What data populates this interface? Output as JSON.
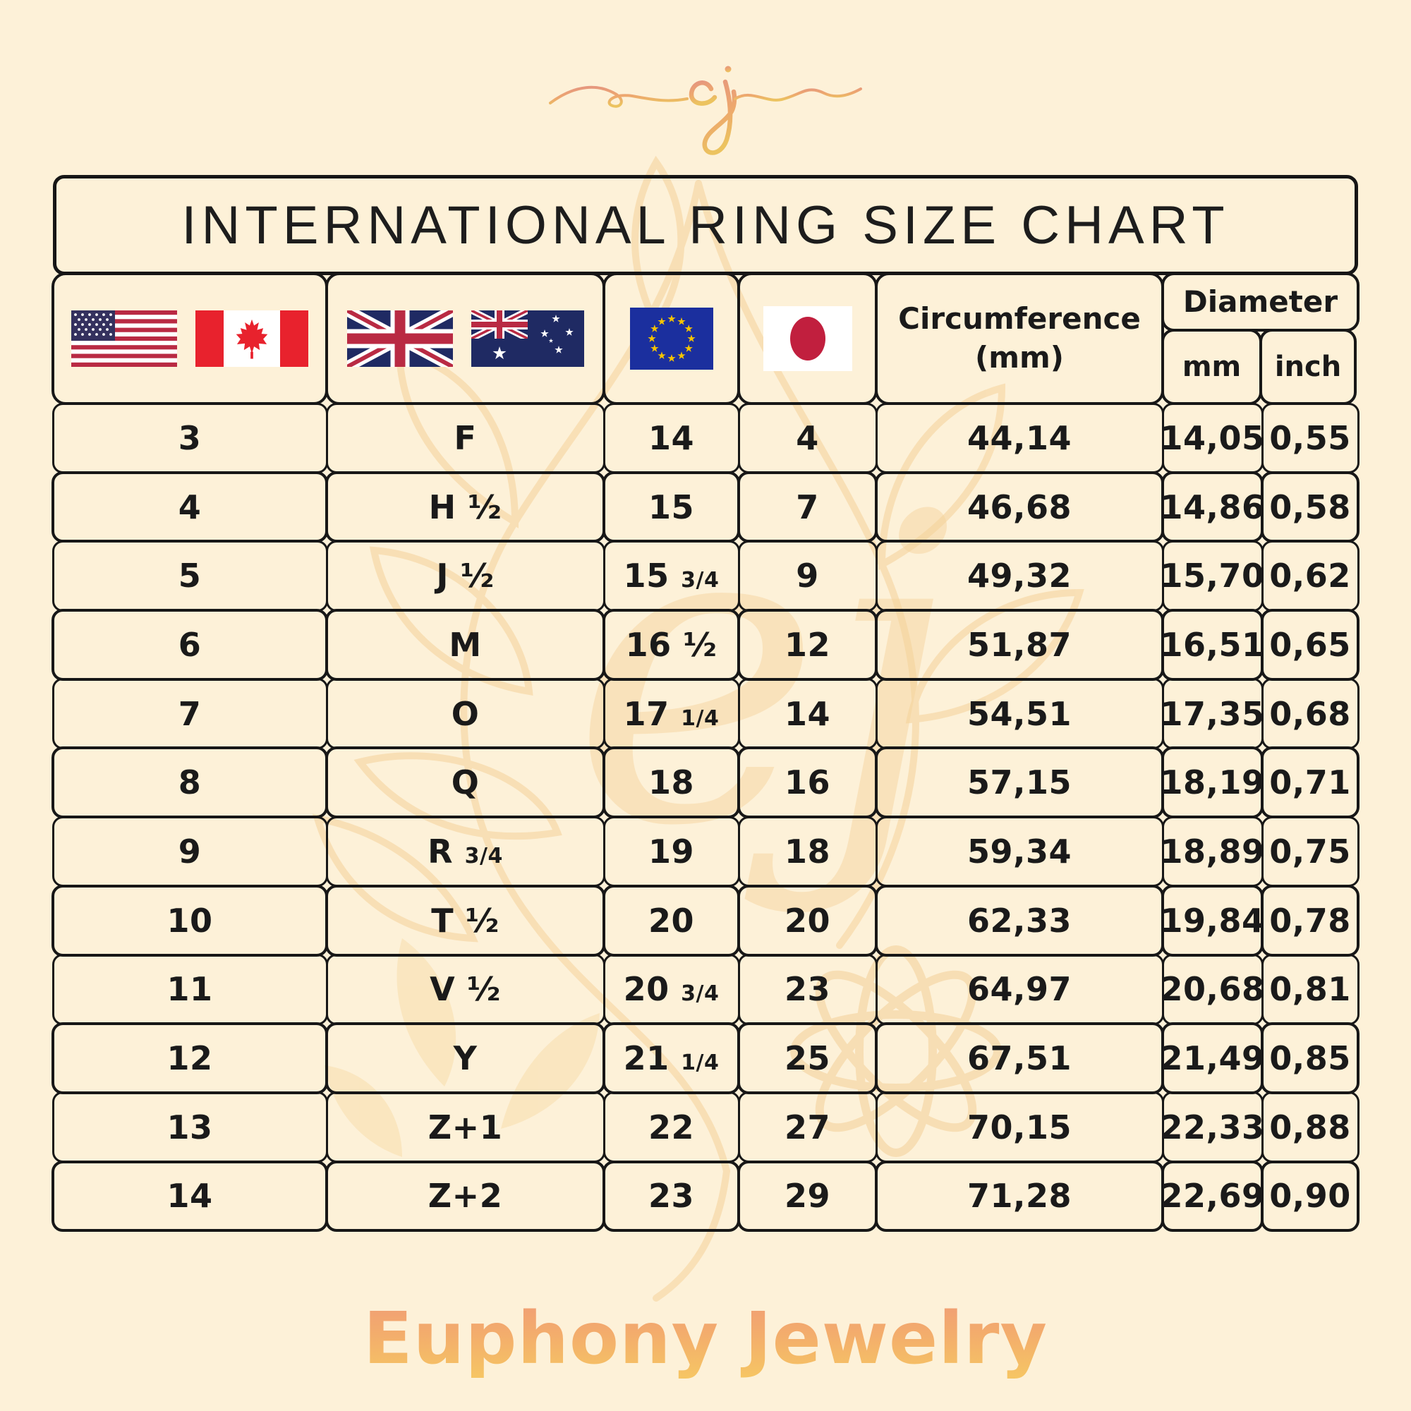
{
  "logo": {
    "monogram": "ej"
  },
  "title": "INTERNATIONAL RING SIZE CHART",
  "table": {
    "header": {
      "us_ca_flags": [
        "us-flag",
        "canada-flag"
      ],
      "uk_au_flags": [
        "uk-flag",
        "australia-flag"
      ],
      "eu_flags": [
        "eu-flag"
      ],
      "jp_flags": [
        "japan-flag"
      ],
      "circumference_line1": "Circumference",
      "circumference_line2": "(mm)",
      "diameter_label": "Diameter",
      "diameter_sub_mm": "mm",
      "diameter_sub_inch": "inch"
    },
    "rows": [
      {
        "us": "3",
        "uk": "F",
        "eu": "14",
        "jp": "4",
        "circumference_mm": "44,14",
        "diameter_mm": "14,05",
        "diameter_inch": "0,55"
      },
      {
        "us": "4",
        "uk": "H ½",
        "eu": "15",
        "jp": "7",
        "circumference_mm": "46,68",
        "diameter_mm": "14,86",
        "diameter_inch": "0,58"
      },
      {
        "us": "5",
        "uk": "J ½",
        "eu": "15 3/4",
        "jp": "9",
        "circumference_mm": "49,32",
        "diameter_mm": "15,70",
        "diameter_inch": "0,62"
      },
      {
        "us": "6",
        "uk": "M",
        "eu": "16 ½",
        "jp": "12",
        "circumference_mm": "51,87",
        "diameter_mm": "16,51",
        "diameter_inch": "0,65"
      },
      {
        "us": "7",
        "uk": "O",
        "eu": "17 1/4",
        "jp": "14",
        "circumference_mm": "54,51",
        "diameter_mm": "17,35",
        "diameter_inch": "0,68"
      },
      {
        "us": "8",
        "uk": "Q",
        "eu": "18",
        "jp": "16",
        "circumference_mm": "57,15",
        "diameter_mm": "18,19",
        "diameter_inch": "0,71"
      },
      {
        "us": "9",
        "uk": "R 3/4",
        "eu": "19",
        "jp": "18",
        "circumference_mm": "59,34",
        "diameter_mm": "18,89",
        "diameter_inch": "0,75"
      },
      {
        "us": "10",
        "uk": "T ½",
        "eu": "20",
        "jp": "20",
        "circumference_mm": "62,33",
        "diameter_mm": "19,84",
        "diameter_inch": "0,78"
      },
      {
        "us": "11",
        "uk": "V ½",
        "eu": "20 3/4",
        "jp": "23",
        "circumference_mm": "64,97",
        "diameter_mm": "20,68",
        "diameter_inch": "0,81"
      },
      {
        "us": "12",
        "uk": "Y",
        "eu": "21 1/4",
        "jp": "25",
        "circumference_mm": "67,51",
        "diameter_mm": "21,49",
        "diameter_inch": "0,85"
      },
      {
        "us": "13",
        "uk": "Z+1",
        "eu": "22",
        "jp": "27",
        "circumference_mm": "70,15",
        "diameter_mm": "22,33",
        "diameter_inch": "0,88"
      },
      {
        "us": "14",
        "uk": "Z+2",
        "eu": "23",
        "jp": "29",
        "circumference_mm": "71,28",
        "diameter_mm": "22,69",
        "diameter_inch": "0,90"
      }
    ]
  },
  "footer": {
    "brand": "Euphony Jewelry"
  },
  "colors": {
    "background": "#fdf1d8",
    "border": "#171717",
    "text": "#1a1a1a",
    "watermark": "#f5d29a",
    "gradient_top": "#f09c76",
    "gradient_bottom": "#f6c763",
    "eu_blue": "#1b2f9e",
    "japan_red": "#c11f3e",
    "flag_red": "#b92a43",
    "uk_navy": "#1f2a63",
    "canada_red": "#e8222d"
  }
}
